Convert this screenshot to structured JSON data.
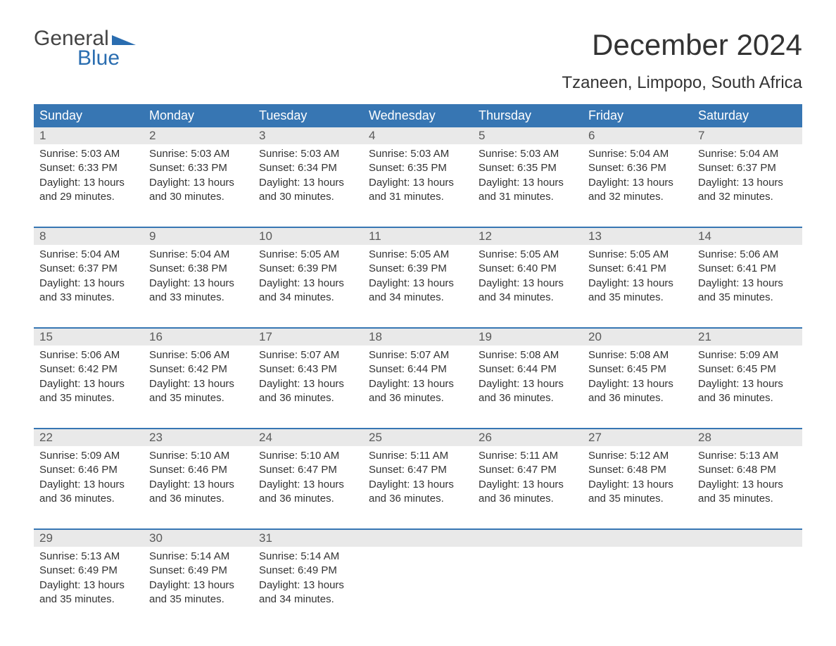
{
  "brand": {
    "line1": "General",
    "line2": "Blue",
    "shape_color": "#2a6db0",
    "text_color_1": "#444444",
    "text_color_2": "#2a6db0"
  },
  "title": "December 2024",
  "location": "Tzaneen, Limpopo, South Africa",
  "colors": {
    "header_bg": "#3776b3",
    "header_fg": "#ffffff",
    "daynum_bg": "#e9e9e9",
    "daynum_fg": "#5a5a5a",
    "week_border": "#3776b3",
    "body_text": "#333333",
    "page_bg": "#ffffff"
  },
  "typography": {
    "month_title_size": 42,
    "location_size": 24,
    "weekday_size": 18,
    "daynum_size": 17,
    "cell_size": 15,
    "logo_size": 30
  },
  "table": {
    "columns": [
      "Sunday",
      "Monday",
      "Tuesday",
      "Wednesday",
      "Thursday",
      "Friday",
      "Saturday"
    ],
    "weeks": [
      [
        {
          "n": "1",
          "sunrise": "Sunrise: 5:03 AM",
          "sunset": "Sunset: 6:33 PM",
          "dl1": "Daylight: 13 hours",
          "dl2": "and 29 minutes."
        },
        {
          "n": "2",
          "sunrise": "Sunrise: 5:03 AM",
          "sunset": "Sunset: 6:33 PM",
          "dl1": "Daylight: 13 hours",
          "dl2": "and 30 minutes."
        },
        {
          "n": "3",
          "sunrise": "Sunrise: 5:03 AM",
          "sunset": "Sunset: 6:34 PM",
          "dl1": "Daylight: 13 hours",
          "dl2": "and 30 minutes."
        },
        {
          "n": "4",
          "sunrise": "Sunrise: 5:03 AM",
          "sunset": "Sunset: 6:35 PM",
          "dl1": "Daylight: 13 hours",
          "dl2": "and 31 minutes."
        },
        {
          "n": "5",
          "sunrise": "Sunrise: 5:03 AM",
          "sunset": "Sunset: 6:35 PM",
          "dl1": "Daylight: 13 hours",
          "dl2": "and 31 minutes."
        },
        {
          "n": "6",
          "sunrise": "Sunrise: 5:04 AM",
          "sunset": "Sunset: 6:36 PM",
          "dl1": "Daylight: 13 hours",
          "dl2": "and 32 minutes."
        },
        {
          "n": "7",
          "sunrise": "Sunrise: 5:04 AM",
          "sunset": "Sunset: 6:37 PM",
          "dl1": "Daylight: 13 hours",
          "dl2": "and 32 minutes."
        }
      ],
      [
        {
          "n": "8",
          "sunrise": "Sunrise: 5:04 AM",
          "sunset": "Sunset: 6:37 PM",
          "dl1": "Daylight: 13 hours",
          "dl2": "and 33 minutes."
        },
        {
          "n": "9",
          "sunrise": "Sunrise: 5:04 AM",
          "sunset": "Sunset: 6:38 PM",
          "dl1": "Daylight: 13 hours",
          "dl2": "and 33 minutes."
        },
        {
          "n": "10",
          "sunrise": "Sunrise: 5:05 AM",
          "sunset": "Sunset: 6:39 PM",
          "dl1": "Daylight: 13 hours",
          "dl2": "and 34 minutes."
        },
        {
          "n": "11",
          "sunrise": "Sunrise: 5:05 AM",
          "sunset": "Sunset: 6:39 PM",
          "dl1": "Daylight: 13 hours",
          "dl2": "and 34 minutes."
        },
        {
          "n": "12",
          "sunrise": "Sunrise: 5:05 AM",
          "sunset": "Sunset: 6:40 PM",
          "dl1": "Daylight: 13 hours",
          "dl2": "and 34 minutes."
        },
        {
          "n": "13",
          "sunrise": "Sunrise: 5:05 AM",
          "sunset": "Sunset: 6:41 PM",
          "dl1": "Daylight: 13 hours",
          "dl2": "and 35 minutes."
        },
        {
          "n": "14",
          "sunrise": "Sunrise: 5:06 AM",
          "sunset": "Sunset: 6:41 PM",
          "dl1": "Daylight: 13 hours",
          "dl2": "and 35 minutes."
        }
      ],
      [
        {
          "n": "15",
          "sunrise": "Sunrise: 5:06 AM",
          "sunset": "Sunset: 6:42 PM",
          "dl1": "Daylight: 13 hours",
          "dl2": "and 35 minutes."
        },
        {
          "n": "16",
          "sunrise": "Sunrise: 5:06 AM",
          "sunset": "Sunset: 6:42 PM",
          "dl1": "Daylight: 13 hours",
          "dl2": "and 35 minutes."
        },
        {
          "n": "17",
          "sunrise": "Sunrise: 5:07 AM",
          "sunset": "Sunset: 6:43 PM",
          "dl1": "Daylight: 13 hours",
          "dl2": "and 36 minutes."
        },
        {
          "n": "18",
          "sunrise": "Sunrise: 5:07 AM",
          "sunset": "Sunset: 6:44 PM",
          "dl1": "Daylight: 13 hours",
          "dl2": "and 36 minutes."
        },
        {
          "n": "19",
          "sunrise": "Sunrise: 5:08 AM",
          "sunset": "Sunset: 6:44 PM",
          "dl1": "Daylight: 13 hours",
          "dl2": "and 36 minutes."
        },
        {
          "n": "20",
          "sunrise": "Sunrise: 5:08 AM",
          "sunset": "Sunset: 6:45 PM",
          "dl1": "Daylight: 13 hours",
          "dl2": "and 36 minutes."
        },
        {
          "n": "21",
          "sunrise": "Sunrise: 5:09 AM",
          "sunset": "Sunset: 6:45 PM",
          "dl1": "Daylight: 13 hours",
          "dl2": "and 36 minutes."
        }
      ],
      [
        {
          "n": "22",
          "sunrise": "Sunrise: 5:09 AM",
          "sunset": "Sunset: 6:46 PM",
          "dl1": "Daylight: 13 hours",
          "dl2": "and 36 minutes."
        },
        {
          "n": "23",
          "sunrise": "Sunrise: 5:10 AM",
          "sunset": "Sunset: 6:46 PM",
          "dl1": "Daylight: 13 hours",
          "dl2": "and 36 minutes."
        },
        {
          "n": "24",
          "sunrise": "Sunrise: 5:10 AM",
          "sunset": "Sunset: 6:47 PM",
          "dl1": "Daylight: 13 hours",
          "dl2": "and 36 minutes."
        },
        {
          "n": "25",
          "sunrise": "Sunrise: 5:11 AM",
          "sunset": "Sunset: 6:47 PM",
          "dl1": "Daylight: 13 hours",
          "dl2": "and 36 minutes."
        },
        {
          "n": "26",
          "sunrise": "Sunrise: 5:11 AM",
          "sunset": "Sunset: 6:47 PM",
          "dl1": "Daylight: 13 hours",
          "dl2": "and 36 minutes."
        },
        {
          "n": "27",
          "sunrise": "Sunrise: 5:12 AM",
          "sunset": "Sunset: 6:48 PM",
          "dl1": "Daylight: 13 hours",
          "dl2": "and 35 minutes."
        },
        {
          "n": "28",
          "sunrise": "Sunrise: 5:13 AM",
          "sunset": "Sunset: 6:48 PM",
          "dl1": "Daylight: 13 hours",
          "dl2": "and 35 minutes."
        }
      ],
      [
        {
          "n": "29",
          "sunrise": "Sunrise: 5:13 AM",
          "sunset": "Sunset: 6:49 PM",
          "dl1": "Daylight: 13 hours",
          "dl2": "and 35 minutes."
        },
        {
          "n": "30",
          "sunrise": "Sunrise: 5:14 AM",
          "sunset": "Sunset: 6:49 PM",
          "dl1": "Daylight: 13 hours",
          "dl2": "and 35 minutes."
        },
        {
          "n": "31",
          "sunrise": "Sunrise: 5:14 AM",
          "sunset": "Sunset: 6:49 PM",
          "dl1": "Daylight: 13 hours",
          "dl2": "and 34 minutes."
        },
        null,
        null,
        null,
        null
      ]
    ]
  }
}
